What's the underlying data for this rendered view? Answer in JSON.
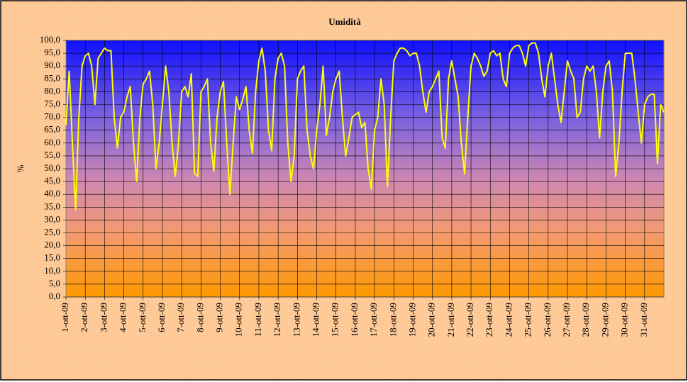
{
  "chart_data": {
    "type": "line",
    "title": "Umidità",
    "y_label": "%",
    "color": "#ffff00",
    "grid": true,
    "ylim": [
      0,
      100
    ],
    "yticks": [
      {
        "value": 0,
        "label": "0,0"
      },
      {
        "value": 5,
        "label": "5,0"
      },
      {
        "value": 10,
        "label": "10,0"
      },
      {
        "value": 15,
        "label": "15,0"
      },
      {
        "value": 20,
        "label": "20,0"
      },
      {
        "value": 25,
        "label": "25,0"
      },
      {
        "value": 30,
        "label": "30,0"
      },
      {
        "value": 35,
        "label": "35,0"
      },
      {
        "value": 40,
        "label": "40,0"
      },
      {
        "value": 45,
        "label": "45,0"
      },
      {
        "value": 50,
        "label": "50,0"
      },
      {
        "value": 55,
        "label": "55,0"
      },
      {
        "value": 60,
        "label": "60,0"
      },
      {
        "value": 65,
        "label": "65,0"
      },
      {
        "value": 70,
        "label": "70,0"
      },
      {
        "value": 75,
        "label": "75,0"
      },
      {
        "value": 80,
        "label": "80,0"
      },
      {
        "value": 85,
        "label": "85,0"
      },
      {
        "value": 90,
        "label": "90,0"
      },
      {
        "value": 95,
        "label": "95,0"
      },
      {
        "value": 100,
        "label": "100,0"
      }
    ],
    "categories": [
      "1-ott-09",
      null,
      null,
      null,
      null,
      null,
      "2-ott-09",
      null,
      null,
      null,
      null,
      null,
      "3-ott-09",
      null,
      null,
      null,
      null,
      null,
      "4-ott-09",
      null,
      null,
      null,
      null,
      null,
      "5-ott-09",
      null,
      null,
      null,
      null,
      null,
      "6-ott-09",
      null,
      null,
      null,
      null,
      null,
      "7-ott-09",
      null,
      null,
      null,
      null,
      null,
      "8-ott-09",
      null,
      null,
      null,
      null,
      null,
      "9-ott-09",
      null,
      null,
      null,
      null,
      null,
      "10-ott-09",
      null,
      null,
      null,
      null,
      null,
      "11-ott-09",
      null,
      null,
      null,
      null,
      null,
      "12-ott-09",
      null,
      null,
      null,
      null,
      null,
      "13-ott-09",
      null,
      null,
      null,
      null,
      null,
      "14-ott-09",
      null,
      null,
      null,
      null,
      null,
      "15-ott-09",
      null,
      null,
      null,
      null,
      null,
      "16-ott-09",
      null,
      null,
      null,
      null,
      null,
      "17-ott-09",
      null,
      null,
      null,
      null,
      null,
      "18-ott-09",
      null,
      null,
      null,
      null,
      null,
      "19-ott-09",
      null,
      null,
      null,
      null,
      null,
      "20-ott-09",
      null,
      null,
      null,
      null,
      null,
      "21-ott-09",
      null,
      null,
      null,
      null,
      null,
      "22-ott-09",
      null,
      null,
      null,
      null,
      null,
      "23-ott-09",
      null,
      null,
      null,
      null,
      null,
      "24-ott-09",
      null,
      null,
      null,
      null,
      null,
      "25-ott-09",
      null,
      null,
      null,
      null,
      null,
      "26-ott-09",
      null,
      null,
      null,
      null,
      null,
      "27-ott-09",
      null,
      null,
      null,
      null,
      null,
      "28-ott-09",
      null,
      null,
      null,
      null,
      null,
      "29-ott-09",
      null,
      null,
      null,
      null,
      null,
      "30-ott-09",
      null,
      null,
      null,
      null,
      null,
      "31-ott-09",
      null,
      null,
      null,
      null,
      null,
      null
    ],
    "values": [
      67,
      88,
      60,
      34,
      70,
      90,
      94,
      95,
      90,
      75,
      93,
      95,
      97,
      96,
      96,
      70,
      58,
      70,
      72,
      78,
      82,
      60,
      45,
      70,
      83,
      85,
      88,
      75,
      50,
      60,
      75,
      90,
      80,
      60,
      47,
      60,
      80,
      82,
      78,
      87,
      48,
      47,
      80,
      82,
      85,
      60,
      49,
      70,
      80,
      84,
      60,
      40,
      60,
      78,
      73,
      77,
      82,
      65,
      56,
      80,
      92,
      97,
      88,
      65,
      57,
      85,
      93,
      95,
      90,
      60,
      45,
      55,
      85,
      88,
      90,
      65,
      55,
      50,
      65,
      75,
      90,
      63,
      70,
      80,
      85,
      88,
      70,
      55,
      62,
      70,
      71,
      72,
      66,
      68,
      50,
      42,
      65,
      70,
      85,
      75,
      43,
      70,
      92,
      95,
      97,
      97,
      96,
      94,
      95,
      95,
      90,
      80,
      72,
      80,
      82,
      85,
      88,
      62,
      58,
      85,
      92,
      85,
      78,
      60,
      48,
      70,
      90,
      95,
      93,
      90,
      86,
      88,
      95,
      96,
      94,
      95,
      85,
      82,
      95,
      97,
      98,
      98,
      95,
      90,
      98,
      99,
      99,
      95,
      85,
      78,
      90,
      95,
      85,
      75,
      68,
      80,
      92,
      88,
      85,
      70,
      72,
      85,
      90,
      88,
      90,
      80,
      62,
      80,
      90,
      92,
      80,
      47,
      60,
      80,
      95,
      95,
      95,
      85,
      72,
      60,
      75,
      78,
      79,
      79,
      52,
      75,
      72
    ]
  }
}
